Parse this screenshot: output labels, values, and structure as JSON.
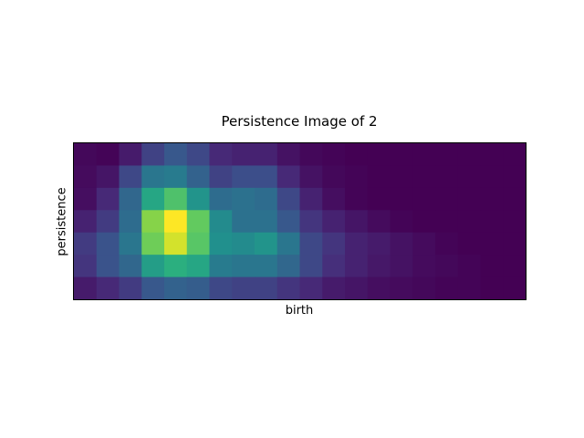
{
  "chart_data": {
    "type": "heatmap",
    "title": "Persistence Image of 2",
    "xlabel": "birth",
    "ylabel": "persistence",
    "xticks": [],
    "yticks": [],
    "colormap": "viridis",
    "value_range": [
      0,
      1
    ],
    "grid": false,
    "rows_top_to_bottom": [
      [
        0.02,
        0.01,
        0.08,
        0.2,
        0.28,
        0.22,
        0.12,
        0.1,
        0.1,
        0.05,
        0.02,
        0.01,
        0.0,
        0.0,
        0.0,
        0.0,
        0.0,
        0.0,
        0.0,
        0.0
      ],
      [
        0.03,
        0.06,
        0.22,
        0.4,
        0.42,
        0.32,
        0.2,
        0.24,
        0.24,
        0.12,
        0.05,
        0.02,
        0.01,
        0.0,
        0.0,
        0.0,
        0.0,
        0.0,
        0.0,
        0.0
      ],
      [
        0.04,
        0.12,
        0.34,
        0.6,
        0.72,
        0.52,
        0.36,
        0.38,
        0.36,
        0.22,
        0.1,
        0.04,
        0.01,
        0.0,
        0.0,
        0.0,
        0.0,
        0.0,
        0.0,
        0.0
      ],
      [
        0.1,
        0.18,
        0.36,
        0.82,
        1.0,
        0.76,
        0.48,
        0.38,
        0.38,
        0.28,
        0.16,
        0.1,
        0.06,
        0.03,
        0.01,
        0.0,
        0.0,
        0.0,
        0.0,
        0.0
      ],
      [
        0.18,
        0.26,
        0.4,
        0.78,
        0.94,
        0.74,
        0.5,
        0.48,
        0.52,
        0.4,
        0.22,
        0.16,
        0.1,
        0.08,
        0.05,
        0.03,
        0.01,
        0.0,
        0.0,
        0.0
      ],
      [
        0.16,
        0.26,
        0.34,
        0.56,
        0.64,
        0.6,
        0.42,
        0.4,
        0.4,
        0.34,
        0.22,
        0.14,
        0.1,
        0.07,
        0.05,
        0.03,
        0.02,
        0.01,
        0.0,
        0.0
      ],
      [
        0.08,
        0.12,
        0.18,
        0.28,
        0.32,
        0.3,
        0.22,
        0.2,
        0.2,
        0.16,
        0.12,
        0.08,
        0.06,
        0.04,
        0.03,
        0.02,
        0.01,
        0.01,
        0.0,
        0.0
      ]
    ]
  }
}
